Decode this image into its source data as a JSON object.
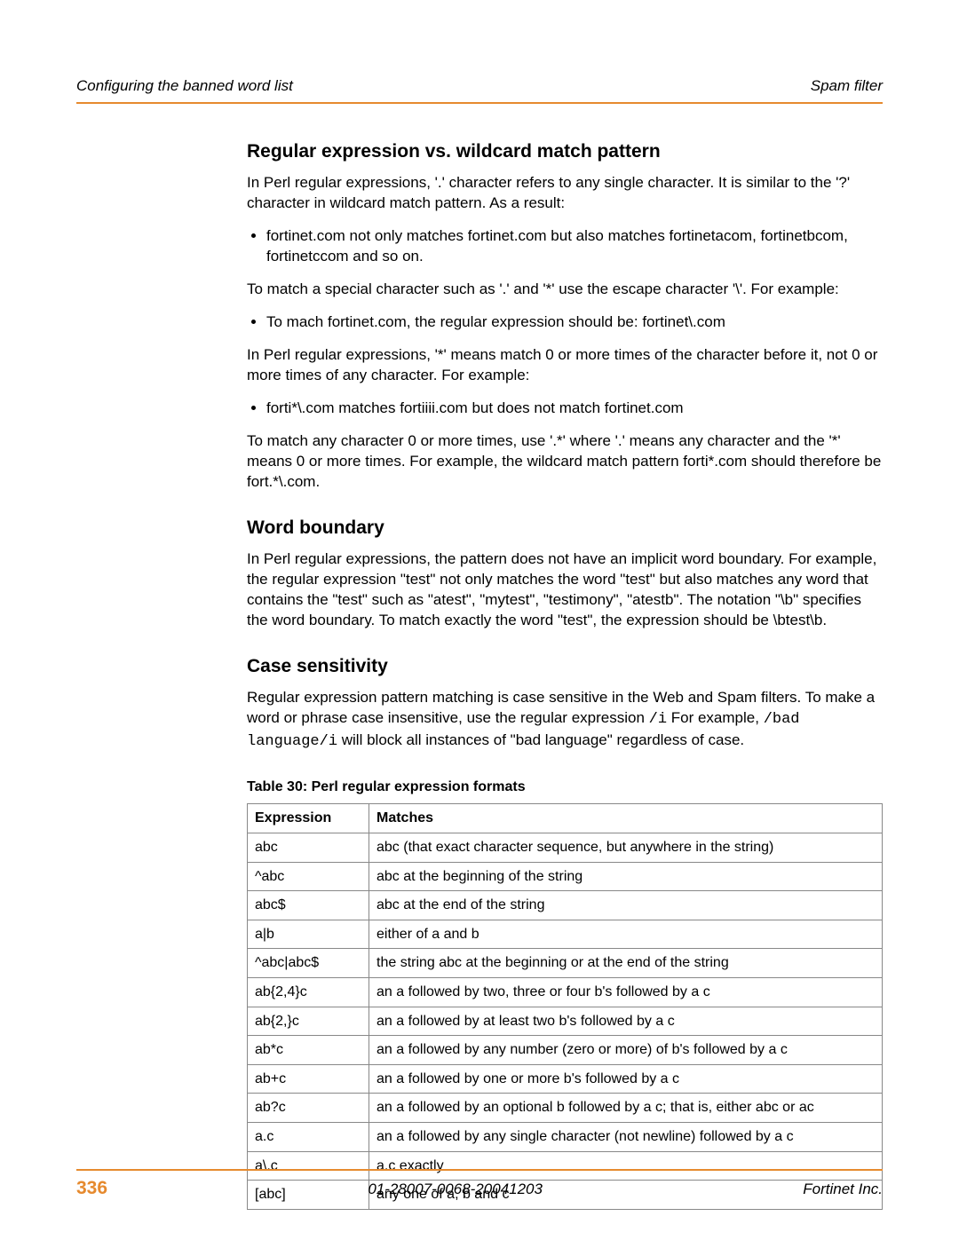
{
  "header": {
    "left": "Configuring the banned word list",
    "right": "Spam filter"
  },
  "section1": {
    "title": "Regular expression vs. wildcard match pattern",
    "p1": "In Perl regular expressions, '.' character refers to any single character. It is similar to the '?' character in wildcard match pattern. As a result:",
    "b1": "fortinet.com not only matches fortinet.com but also matches fortinetacom, fortinetbcom, fortinetccom and so on.",
    "p2": "To match a special character such as '.' and '*' use the escape character '\\'. For example:",
    "b2": "To mach fortinet.com, the regular expression should be: fortinet\\.com",
    "p3": "In Perl regular expressions, '*' means match 0 or more times of the character before it, not 0 or more times of any character. For example:",
    "b3": "forti*\\.com matches fortiiii.com but does not match fortinet.com",
    "p4": "To match any character 0 or more times, use '.*' where '.' means any character and the '*' means 0 or more times. For example, the wildcard match pattern forti*.com should therefore be fort.*\\.com."
  },
  "section2": {
    "title": "Word boundary",
    "p1": "In Perl regular expressions, the pattern does not have an implicit word boundary. For example, the regular expression \"test\" not only matches the word \"test\" but also matches any word that contains the \"test\" such as \"atest\", \"mytest\", \"testimony\", \"atestb\". The notation \"\\b\" specifies the word boundary. To match exactly the word \"test\", the expression should be \\btest\\b."
  },
  "section3": {
    "title": "Case sensitivity",
    "p1a": "Regular expression pattern matching is case sensitive in the Web and Spam filters. To make a word or phrase case insensitive, use the regular expression ",
    "code1": "/i",
    "p1b": " For example, ",
    "code2": "/bad language/i",
    "p1c": " will block all instances of \"bad language\" regardless of case."
  },
  "table": {
    "caption": "Table 30: Perl regular expression formats",
    "head_expr": "Expression",
    "head_match": "Matches",
    "rows": [
      {
        "expr": "abc",
        "match": "abc (that exact character sequence, but anywhere in the string)"
      },
      {
        "expr": "^abc",
        "match": "abc at the beginning of the string"
      },
      {
        "expr": "abc$",
        "match": "abc at the end of the string"
      },
      {
        "expr": "a|b",
        "match": "either of a and b"
      },
      {
        "expr": "^abc|abc$",
        "match": "the string abc at the beginning or at the end of the string"
      },
      {
        "expr": "ab{2,4}c",
        "match": "an a followed by two, three or four b's followed by a c"
      },
      {
        "expr": "ab{2,}c",
        "match": "an a followed by at least two b's followed by a c"
      },
      {
        "expr": "ab*c",
        "match": "an a followed by any number (zero or more) of b's followed by a c"
      },
      {
        "expr": "ab+c",
        "match": "an a followed by one or more b's followed by a c"
      },
      {
        "expr": "ab?c",
        "match": "an a followed by an optional b followed by a c; that is, either abc or ac"
      },
      {
        "expr": "a.c",
        "match": "an a followed by any single character (not newline) followed by a c"
      },
      {
        "expr": "a\\.c",
        "match": "a.c exactly"
      },
      {
        "expr": "[abc]",
        "match": "any one of a, b and c"
      }
    ]
  },
  "footer": {
    "page": "336",
    "docid": "01-28007-0068-20041203",
    "company": "Fortinet Inc."
  },
  "colors": {
    "accent": "#e68a2e"
  }
}
